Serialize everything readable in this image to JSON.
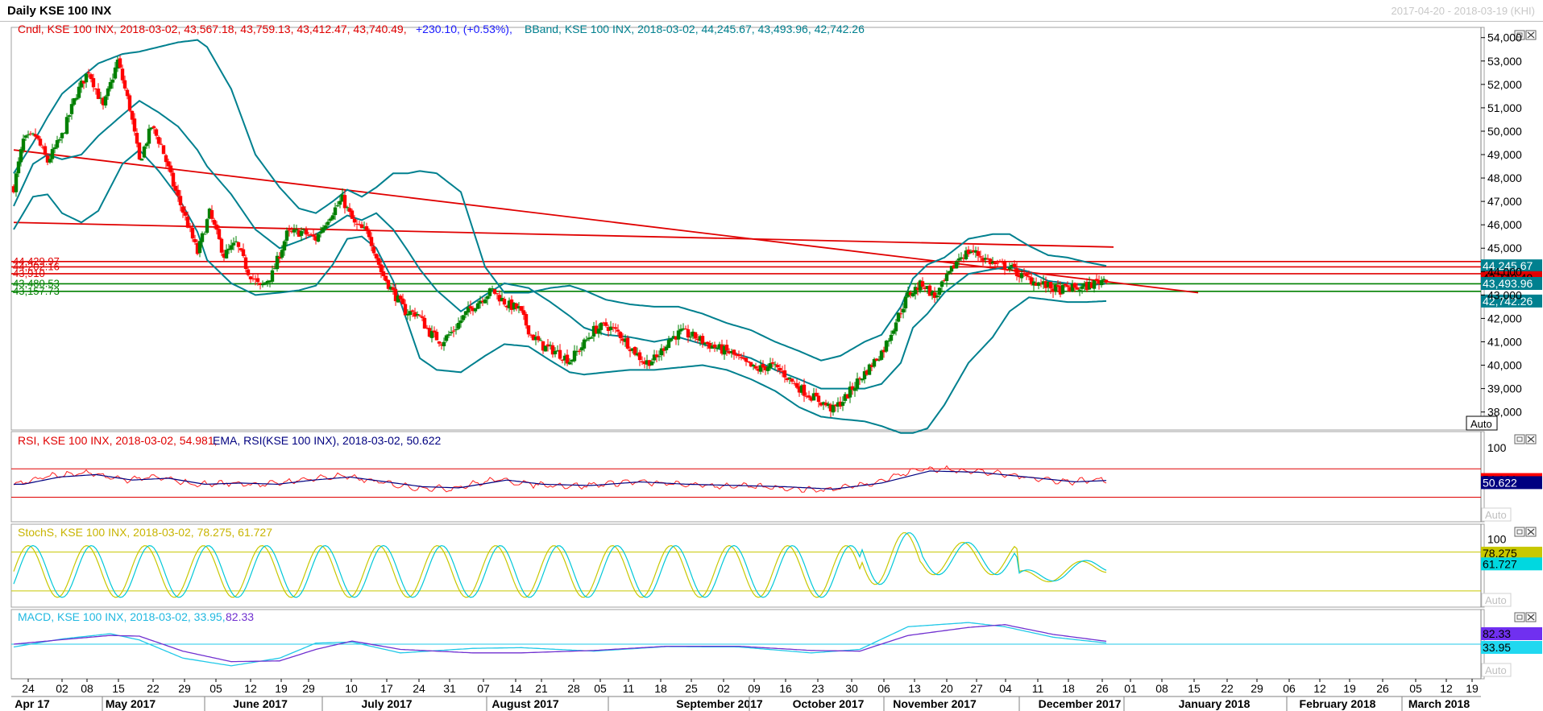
{
  "window": {
    "title": "Daily KSE 100 INX",
    "date_range": "2017-04-20 - 2018-03-19 (KHI)"
  },
  "legends": {
    "price_cndl": "Cndl, KSE 100 INX, 2018-03-02, 43,567.18, 43,759.13, 43,412.47, 43,740.49,",
    "price_change": "+230.10, (+0.53%),",
    "price_bband": "BBand, KSE 100 INX, 2018-03-02, 44,245.67, 43,493.96, 42,742.26",
    "rsi_main": "RSI, KSE 100 INX, 2018-03-02, 54.981,",
    "rsi_ema": "EMA, RSI(KSE 100 INX), 2018-03-02, 50.622",
    "stoch": "StochS, KSE 100 INX, 2018-03-02, 78.275, 61.727",
    "macd_name": "MACD, KSE 100 INX, 2018-03-02, 33.95,",
    "macd_signal": "82.33"
  },
  "auto_label": "Auto",
  "colors": {
    "up": "#008000",
    "down": "#ff0000",
    "bband": "#00808f",
    "level_red": "#e00000",
    "level_green": "#008000",
    "rsi": "#ff2020",
    "rsi_ema": "#000080",
    "stoch_k": "#c8c800",
    "stoch_d": "#00c8d8",
    "macd": "#20c8e8",
    "macd_signal": "#7030d0"
  },
  "chart_data": [
    {
      "type": "candlestick",
      "title": "Daily KSE 100 INX",
      "y_ticks": [
        "54,000",
        "53,000",
        "52,000",
        "51,000",
        "50,000",
        "49,000",
        "48,000",
        "47,000",
        "46,000",
        "45,000",
        "44,000",
        "43,000",
        "42,000",
        "41,000",
        "40,000",
        "39,000",
        "38,000"
      ],
      "ylim": [
        37300,
        54300
      ],
      "x_day_ticks": [
        "24",
        "02",
        "08",
        "15",
        "22",
        "29",
        "05",
        "12",
        "19",
        "29",
        "10",
        "17",
        "24",
        "31",
        "07",
        "14",
        "21",
        "28",
        "05",
        "11",
        "18",
        "25",
        "02",
        "09",
        "16",
        "23",
        "30",
        "06",
        "13",
        "20",
        "27",
        "04",
        "11",
        "18",
        "26",
        "01",
        "08",
        "15",
        "22",
        "29",
        "06",
        "12",
        "19",
        "26",
        "05",
        "12",
        "19"
      ],
      "x_month_labels": [
        "Apr 17",
        "May 2017",
        "June 2017",
        "July 2017",
        "August 2017",
        "September 2017",
        "October 2017",
        "November 2017",
        "December 2017",
        "January 2018",
        "February 2018",
        "March 2018"
      ],
      "last_close": 43740.49,
      "bband_last": {
        "upper": 44245.67,
        "middle": 43493.96,
        "lower": 42742.26
      },
      "horizontal_levels": [
        {
          "label": "44,429.97",
          "value": 44429.97,
          "color": "red"
        },
        {
          "label": "44,202.16",
          "value": 44202.16,
          "color": "red"
        },
        {
          "label": "43,910",
          "value": 43910,
          "color": "red"
        },
        {
          "label": "43,480.53",
          "value": 43480.53,
          "color": "green"
        },
        {
          "label": "43,157.73",
          "value": 43157.73,
          "color": "green"
        }
      ],
      "close_anchors": [
        [
          0,
          47600
        ],
        [
          4,
          49600
        ],
        [
          9,
          49800
        ],
        [
          14,
          48700
        ],
        [
          20,
          49800
        ],
        [
          26,
          51600
        ],
        [
          31,
          52600
        ],
        [
          37,
          51000
        ],
        [
          43,
          53000
        ],
        [
          48,
          51000
        ],
        [
          52,
          48700
        ],
        [
          57,
          50200
        ],
        [
          61,
          49400
        ],
        [
          66,
          47700
        ],
        [
          71,
          46300
        ],
        [
          76,
          44800
        ],
        [
          81,
          46500
        ],
        [
          87,
          44700
        ],
        [
          92,
          45200
        ],
        [
          97,
          44000
        ],
        [
          102,
          43300
        ],
        [
          107,
          43900
        ],
        [
          113,
          45600
        ],
        [
          119,
          45700
        ],
        [
          125,
          45400
        ],
        [
          130,
          46300
        ],
        [
          136,
          47100
        ],
        [
          141,
          46000
        ],
        [
          147,
          45600
        ],
        [
          152,
          44000
        ],
        [
          157,
          43100
        ],
        [
          162,
          42300
        ],
        [
          167,
          42200
        ],
        [
          172,
          41400
        ],
        [
          177,
          41000
        ],
        [
          182,
          41500
        ],
        [
          187,
          42200
        ],
        [
          193,
          42800
        ],
        [
          198,
          43200
        ],
        [
          204,
          42600
        ],
        [
          209,
          42400
        ],
        [
          214,
          41300
        ],
        [
          219,
          40800
        ],
        [
          224,
          40600
        ],
        [
          230,
          40200
        ],
        [
          235,
          40800
        ],
        [
          240,
          41500
        ],
        [
          245,
          41700
        ],
        [
          250,
          41400
        ],
        [
          255,
          40800
        ],
        [
          261,
          40100
        ],
        [
          266,
          40300
        ],
        [
          271,
          41100
        ],
        [
          276,
          41400
        ],
        [
          282,
          41200
        ],
        [
          287,
          40900
        ],
        [
          292,
          40700
        ],
        [
          297,
          40500
        ],
        [
          302,
          40100
        ],
        [
          307,
          39800
        ],
        [
          313,
          40000
        ],
        [
          318,
          39700
        ],
        [
          323,
          39200
        ],
        [
          328,
          38800
        ],
        [
          333,
          38500
        ],
        [
          339,
          38100
        ],
        [
          344,
          38600
        ],
        [
          349,
          39300
        ],
        [
          354,
          39900
        ],
        [
          360,
          40700
        ],
        [
          365,
          41900
        ],
        [
          370,
          43000
        ],
        [
          376,
          43500
        ],
        [
          381,
          42900
        ],
        [
          386,
          43700
        ],
        [
          391,
          44600
        ],
        [
          396,
          44900
        ],
        [
          401,
          44600
        ],
        [
          406,
          44300
        ],
        [
          412,
          44200
        ],
        [
          417,
          43800
        ],
        [
          422,
          43600
        ],
        [
          427,
          43400
        ],
        [
          432,
          43200
        ],
        [
          437,
          43300
        ],
        [
          442,
          43300
        ],
        [
          447,
          43500
        ],
        [
          452,
          43740
        ]
      ],
      "band_anchors": [
        [
          0,
          48200,
          46800,
          45800
        ],
        [
          8,
          49500,
          48600,
          47200
        ],
        [
          14,
          50600,
          49000,
          47300
        ],
        [
          20,
          51600,
          48800,
          46500
        ],
        [
          28,
          52300,
          49000,
          46100
        ],
        [
          35,
          52900,
          49800,
          46600
        ],
        [
          45,
          53300,
          50700,
          48600
        ],
        [
          52,
          53400,
          51300,
          49200
        ],
        [
          60,
          53600,
          50800,
          48300
        ],
        [
          68,
          53800,
          50200,
          47200
        ],
        [
          76,
          53900,
          49200,
          45700
        ],
        [
          80,
          53600,
          48500,
          44500
        ],
        [
          90,
          51800,
          47300,
          43500
        ],
        [
          100,
          49000,
          45800,
          43000
        ],
        [
          110,
          47600,
          45000,
          43100
        ],
        [
          118,
          46700,
          45300,
          43200
        ],
        [
          125,
          46500,
          45600,
          43400
        ],
        [
          132,
          47000,
          46000,
          44300
        ],
        [
          138,
          47500,
          46400,
          45400
        ],
        [
          144,
          47200,
          46200,
          45500
        ],
        [
          150,
          47600,
          46500,
          45000
        ],
        [
          157,
          48200,
          45800,
          43600
        ],
        [
          163,
          48200,
          44900,
          41800
        ],
        [
          168,
          48300,
          44100,
          40300
        ],
        [
          175,
          48200,
          43200,
          39800
        ],
        [
          185,
          47400,
          42300,
          39700
        ],
        [
          195,
          44200,
          43000,
          40400
        ],
        [
          203,
          43100,
          43500,
          40900
        ],
        [
          213,
          43100,
          43300,
          40800
        ],
        [
          222,
          43300,
          42700,
          40200
        ],
        [
          230,
          43400,
          42100,
          39700
        ],
        [
          236,
          43200,
          41600,
          39600
        ],
        [
          245,
          42800,
          41300,
          39700
        ],
        [
          255,
          42600,
          41200,
          39800
        ],
        [
          265,
          42500,
          41000,
          39800
        ],
        [
          275,
          42500,
          41200,
          39900
        ],
        [
          285,
          42200,
          40900,
          40000
        ],
        [
          295,
          41800,
          40600,
          39800
        ],
        [
          305,
          41500,
          40300,
          39400
        ],
        [
          315,
          41000,
          39800,
          38900
        ],
        [
          325,
          40600,
          39400,
          38200
        ],
        [
          334,
          40200,
          39000,
          37800
        ],
        [
          342,
          40400,
          39000,
          37700
        ],
        [
          352,
          41000,
          39000,
          37600
        ],
        [
          359,
          41300,
          39200,
          37400
        ],
        [
          367,
          42500,
          40100,
          37100
        ],
        [
          372,
          43700,
          41600,
          37100
        ],
        [
          378,
          44300,
          42200,
          37300
        ],
        [
          385,
          44600,
          43100,
          38300
        ],
        [
          395,
          45400,
          43900,
          40100
        ],
        [
          405,
          45600,
          44100,
          41200
        ],
        [
          412,
          45600,
          44200,
          42300
        ],
        [
          420,
          45100,
          44000,
          42900
        ],
        [
          428,
          44700,
          43600,
          42800
        ],
        [
          436,
          44600,
          43500,
          42700
        ],
        [
          444,
          44400,
          43400,
          42700
        ],
        [
          452,
          44245,
          43494,
          42742
        ]
      ],
      "trendlines": [
        {
          "from": [
            0,
            49200
          ],
          "to": [
            490,
            43100
          ]
        },
        {
          "from": [
            0,
            46100
          ],
          "to": [
            455,
            45050
          ]
        }
      ]
    },
    {
      "type": "line",
      "name": "RSI",
      "y_ticks": [
        "100"
      ],
      "ylim": [
        0,
        100
      ],
      "bands": [
        70,
        30
      ],
      "last": {
        "rsi": 54.981,
        "ema": 50.622
      }
    },
    {
      "type": "line",
      "name": "StochS",
      "y_ticks": [
        "100"
      ],
      "ylim": [
        0,
        100
      ],
      "bands": [
        80,
        20
      ],
      "last": {
        "k": 78.275,
        "d": 61.727
      }
    },
    {
      "type": "line",
      "name": "MACD",
      "last": {
        "macd": 33.95,
        "signal": 82.33
      },
      "signal_anchors": [
        [
          0,
          0
        ],
        [
          20,
          130
        ],
        [
          40,
          250
        ],
        [
          52,
          230
        ],
        [
          70,
          -200
        ],
        [
          90,
          -500
        ],
        [
          110,
          -480
        ],
        [
          125,
          -150
        ],
        [
          140,
          90
        ],
        [
          160,
          -150
        ],
        [
          190,
          -250
        ],
        [
          210,
          -250
        ],
        [
          240,
          -180
        ],
        [
          270,
          -60
        ],
        [
          300,
          -60
        ],
        [
          330,
          -180
        ],
        [
          350,
          -200
        ],
        [
          370,
          250
        ],
        [
          395,
          480
        ],
        [
          410,
          560
        ],
        [
          430,
          280
        ],
        [
          452,
          82.33
        ]
      ],
      "macd_anchors": [
        [
          0,
          -80
        ],
        [
          20,
          150
        ],
        [
          40,
          300
        ],
        [
          52,
          120
        ],
        [
          70,
          -400
        ],
        [
          90,
          -620
        ],
        [
          110,
          -400
        ],
        [
          125,
          30
        ],
        [
          140,
          60
        ],
        [
          160,
          -250
        ],
        [
          190,
          -120
        ],
        [
          210,
          -100
        ],
        [
          240,
          -200
        ],
        [
          270,
          -70
        ],
        [
          300,
          -80
        ],
        [
          330,
          -250
        ],
        [
          350,
          -150
        ],
        [
          370,
          500
        ],
        [
          395,
          620
        ],
        [
          410,
          500
        ],
        [
          430,
          200
        ],
        [
          452,
          33.95
        ]
      ]
    }
  ]
}
